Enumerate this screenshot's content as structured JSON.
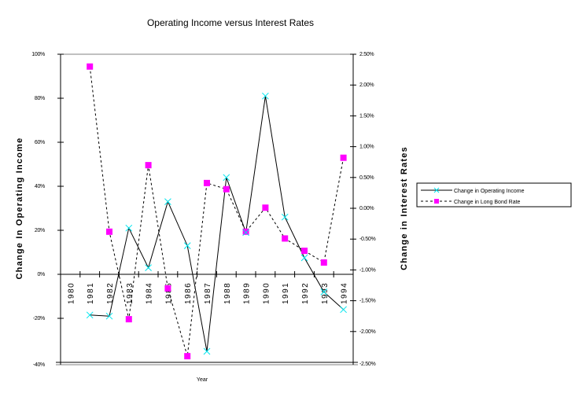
{
  "chart_data": {
    "type": "line",
    "title": "Operating Income versus Interest Rates",
    "xlabel": "Year",
    "ylabel": "Change In Operating Income",
    "y2label": "Change in Interest Rates",
    "categories": [
      "1980",
      "1981",
      "1982",
      "1983",
      "1984",
      "1985",
      "1986",
      "1987",
      "1988",
      "1989",
      "1990",
      "1991",
      "1992",
      "1993",
      "1994"
    ],
    "ylim": [
      -40,
      100
    ],
    "y_ticks": [
      100,
      80,
      60,
      40,
      20,
      0,
      -20,
      -40
    ],
    "y_tick_labels": [
      "100%",
      "80%",
      "60%",
      "40%",
      "20%",
      "0%",
      "-20%",
      "-40%"
    ],
    "y2lim": [
      -2.5,
      2.5
    ],
    "y2_ticks": [
      2.5,
      2.0,
      1.5,
      1.0,
      0.5,
      0.0,
      -0.5,
      -1.0,
      -1.5,
      -2.0,
      -2.5
    ],
    "y2_tick_labels": [
      "2.50%",
      "2.00%",
      "1.50%",
      "1.00%",
      "0.50%",
      "0.00%",
      "-0.50%",
      "-1.00%",
      "-1.50%",
      "-2.00%",
      "-2.50%"
    ],
    "series": [
      {
        "name": "Change in Operating Income",
        "axis": "left",
        "style": "solid",
        "marker": "x",
        "color": "#00e5ee",
        "line_color": "#000000",
        "values": [
          null,
          -18.5,
          -19,
          21,
          3,
          33,
          13,
          -35,
          44,
          19,
          81,
          26,
          7.5,
          -8,
          -16
        ]
      },
      {
        "name": "Change in Long Bond Rate",
        "axis": "right",
        "style": "dashed",
        "marker": "square",
        "color": "#ff00ff",
        "line_color": "#000000",
        "values": [
          null,
          2.3,
          -0.38,
          -1.8,
          0.7,
          -1.3,
          -2.4,
          0.41,
          0.31,
          -0.38,
          0.01,
          -0.49,
          -0.69,
          -0.88,
          0.82
        ]
      }
    ],
    "legend": "right",
    "grid": false
  }
}
